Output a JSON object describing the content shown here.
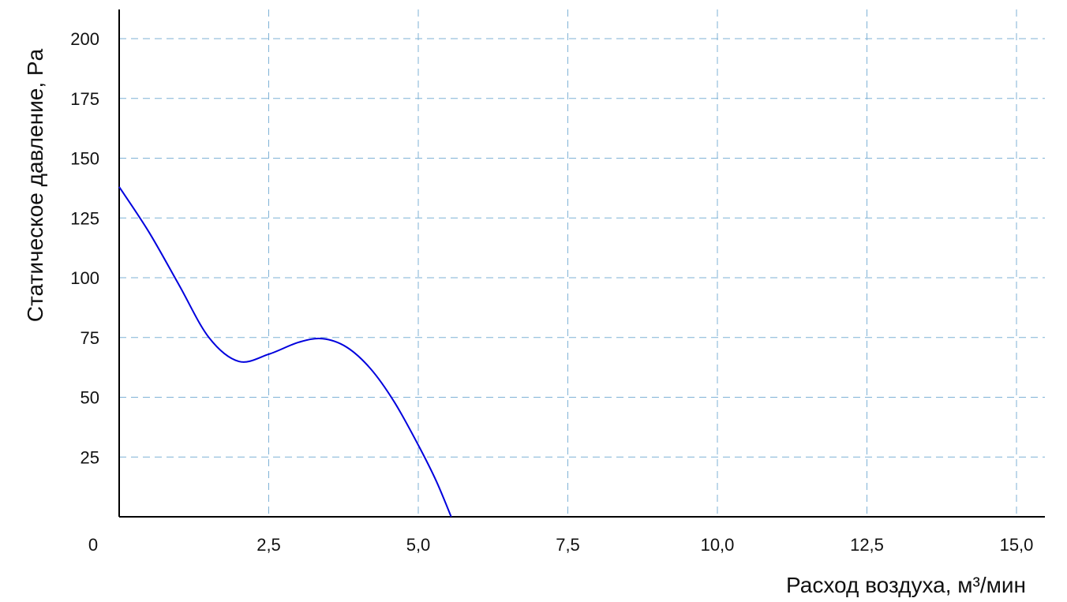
{
  "chart_data": {
    "type": "line",
    "xlabel": "Расход воздуха, м³/мин",
    "ylabel": "Статическое давление, Pa",
    "xlim": [
      0,
      15.5
    ],
    "ylim": [
      0,
      212
    ],
    "origin_label": "0",
    "x_ticks": [
      {
        "value": 2.5,
        "label": "2,5"
      },
      {
        "value": 5.0,
        "label": "5,0"
      },
      {
        "value": 7.5,
        "label": "7,5"
      },
      {
        "value": 10.0,
        "label": "10,0"
      },
      {
        "value": 12.5,
        "label": "12,5"
      },
      {
        "value": 15.0,
        "label": "15,0"
      }
    ],
    "y_ticks": [
      {
        "value": 25,
        "label": "25"
      },
      {
        "value": 50,
        "label": "50"
      },
      {
        "value": 75,
        "label": "75"
      },
      {
        "value": 100,
        "label": "100"
      },
      {
        "value": 125,
        "label": "125"
      },
      {
        "value": 150,
        "label": "150"
      },
      {
        "value": 175,
        "label": "175"
      },
      {
        "value": 200,
        "label": "200"
      }
    ],
    "grid": true,
    "series": [
      {
        "color": "#0000dd",
        "x": [
          0,
          0.5,
          1.0,
          1.5,
          2.0,
          2.5,
          3.0,
          3.4,
          3.8,
          4.2,
          4.6,
          5.0,
          5.3,
          5.55
        ],
        "y": [
          138,
          119,
          97,
          75,
          65,
          68,
          73,
          74.5,
          71,
          62,
          48,
          30,
          15,
          0
        ]
      }
    ]
  }
}
